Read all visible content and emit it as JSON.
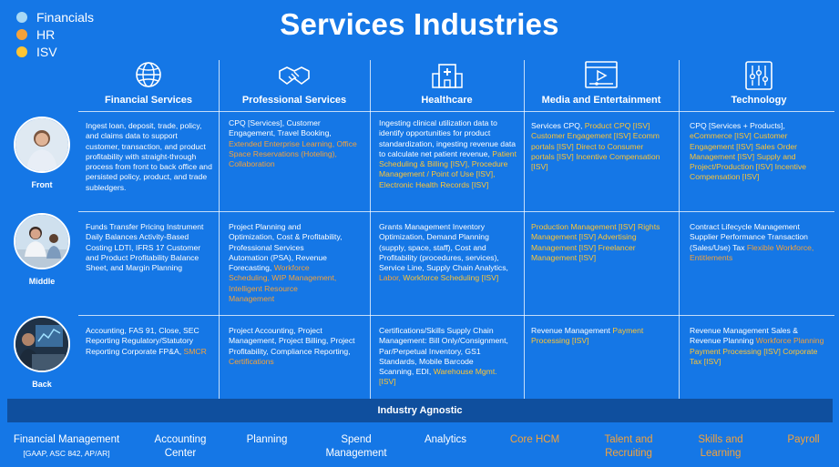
{
  "title": "Services Industries",
  "legend": [
    {
      "label": "Financials",
      "color": "#a8d8f5"
    },
    {
      "label": "HR",
      "color": "#f5a23a"
    },
    {
      "label": "ISV",
      "color": "#ffc533"
    }
  ],
  "columns": [
    {
      "label": "Financial Services",
      "icon": "globe-icon"
    },
    {
      "label": "Professional Services",
      "icon": "handshake-icon"
    },
    {
      "label": "Healthcare",
      "icon": "hospital-icon"
    },
    {
      "label": "Media and Entertainment",
      "icon": "media-player-icon"
    },
    {
      "label": "Technology",
      "icon": "circuit-icon"
    }
  ],
  "rows": [
    {
      "label": "Front",
      "photo": "front-office-photo"
    },
    {
      "label": "Middle",
      "photo": "middle-office-photo"
    },
    {
      "label": "Back",
      "photo": "back-office-photo"
    }
  ],
  "cells": {
    "front": [
      [
        {
          "t": "Ingest loan, deposit, trade, policy, and claims data to support customer, transaction, and product profitability with straight-through process from front to back office and persisted policy, product, and trade subledgers.",
          "c": "w"
        }
      ],
      [
        {
          "t": "CPQ [Services], Customer Engagement, Travel Booking, ",
          "c": "w"
        },
        {
          "t": "Extended Enterprise Learning, Office Space Reservations (Hoteling), Collaboration",
          "c": "o"
        }
      ],
      [
        {
          "t": "Ingesting clinical utilization data to identify opportunities for product standardization, ingesting revenue data to calculate net patient revenue, ",
          "c": "w"
        },
        {
          "t": "Patient Scheduling & Billing [ISV], Procedure Management /  Point of Use [ISV], Electronic Health Records [ISV]",
          "c": "y"
        }
      ],
      [
        {
          "t": "Services CPQ, ",
          "c": "w"
        },
        {
          "t": "Product CPQ [ISV] Customer Engagement [ISV] Ecomm portals [ISV] Direct to Consumer portals [ISV] Incentive Compensation [ISV]",
          "c": "y"
        }
      ],
      [
        {
          "t": "CPQ [Services + Products], ",
          "c": "w"
        },
        {
          "t": "eCommerce [ISV] Customer Engagement [ISV] Sales Order Management [ISV] Supply and Project/Production [ISV] Incentive Compensation [ISV]",
          "c": "y"
        }
      ]
    ],
    "middle": [
      [
        {
          "t": "Funds Transfer Pricing Instrument Daily Balances Activity-Based Costing LDTI, IFRS 17 Customer and Product Profitability Balance Sheet, and Margin Planning",
          "c": "w"
        }
      ],
      [
        {
          "t": "Project Planning and Optimization, Cost & Profitability, Professional Services Automation (PSA), Revenue Forecasting, ",
          "c": "w"
        },
        {
          "t": "Workforce Scheduling, WIP Management, Intelligent Resource Management",
          "c": "o"
        }
      ],
      [
        {
          "t": "Grants Management Inventory Optimization, Demand Planning (supply, space, staff), Cost and Profitability (procedures, services), Service Line, Supply Chain Analytics, ",
          "c": "w"
        },
        {
          "t": "Labor, ",
          "c": "o"
        },
        {
          "t": "Workforce Scheduling [ISV]",
          "c": "y"
        }
      ],
      [
        {
          "t": "Production Management [ISV] Rights Management [ISV] Advertising Management [ISV] Freelancer Management [ISV]",
          "c": "y"
        }
      ],
      [
        {
          "t": "Contract Lifecycle Management Supplier Performance Transaction (Sales/Use) Tax ",
          "c": "w"
        },
        {
          "t": "Flexible Workforce, Entitlements",
          "c": "o"
        }
      ]
    ],
    "back": [
      [
        {
          "t": "Accounting, FAS 91, Close, SEC Reporting Regulatory/Statutory Reporting Corporate FP&A, ",
          "c": "w"
        },
        {
          "t": "SMCR",
          "c": "o"
        }
      ],
      [
        {
          "t": "Project Accounting, Project Management, Project Billing, Project Profitability, Compliance Reporting, ",
          "c": "w"
        },
        {
          "t": "Certifications",
          "c": "o"
        }
      ],
      [
        {
          "t": "Certifications/Skills Supply Chain Management: Bill Only/Consignment, Par/Perpetual Inventory, GS1 Standards, Mobile Barcode Scanning, EDI, ",
          "c": "w"
        },
        {
          "t": "Warehouse Mgmt.  [ISV]",
          "c": "y"
        }
      ],
      [
        {
          "t": "Revenue Management ",
          "c": "w"
        },
        {
          "t": "Payment Processing [ISV]",
          "c": "y"
        }
      ],
      [
        {
          "t": "Revenue Management Sales & Revenue Planning ",
          "c": "w"
        },
        {
          "t": "Workforce Planning ",
          "c": "o"
        },
        {
          "t": "Payment Processing [ISV] Corporate Tax [ISV]",
          "c": "y"
        }
      ]
    ]
  },
  "agnostic_label": "Industry Agnostic",
  "bottom_items": [
    {
      "line1": "Financial Management",
      "line2": "[GAAP, ASC 842, AP/AR]",
      "kind": "fin"
    },
    {
      "line1": "Accounting",
      "line2": "Center",
      "kind": "fin"
    },
    {
      "line1": "Planning",
      "line2": "",
      "kind": "fin"
    },
    {
      "line1": "Spend",
      "line2": "Management",
      "kind": "fin"
    },
    {
      "line1": "Analytics",
      "line2": "",
      "kind": "fin"
    },
    {
      "line1": "Core HCM",
      "line2": "",
      "kind": "hr"
    },
    {
      "line1": "Talent and",
      "line2": "Recruiting",
      "kind": "hr"
    },
    {
      "line1": "Skills and",
      "line2": "Learning",
      "kind": "hr"
    },
    {
      "line1": "Payroll",
      "line2": "",
      "kind": "hr"
    }
  ],
  "colors": {
    "white": "#ffffff",
    "orange": "#f5a23a",
    "yellow": "#ffc533"
  }
}
